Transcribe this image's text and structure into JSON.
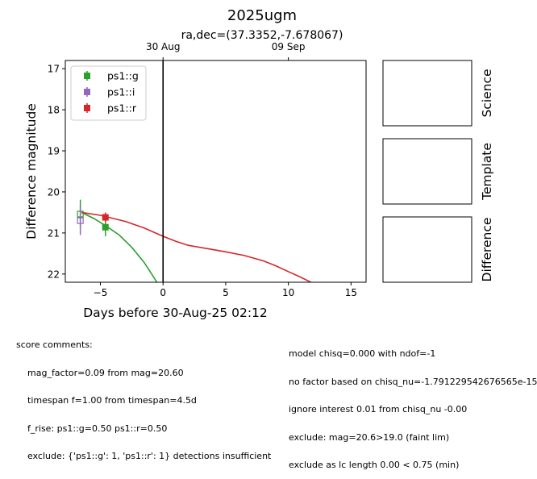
{
  "figure": {
    "title": "2025ugm",
    "subtitle": "ra,dec=(37.3352,-7.678067)"
  },
  "chart_data": {
    "type": "scatter",
    "title": "2025ugm",
    "xlabel": "Days before 30-Aug-25 02:12",
    "ylabel": "Difference magnitude",
    "xlim": [
      -7.8,
      16.2
    ],
    "ylim": [
      22.2,
      16.8
    ],
    "y_inverted": true,
    "grid": false,
    "legend_position": "top-left",
    "x_ticks": [
      -5,
      0,
      5,
      10,
      15
    ],
    "y_ticks": [
      17,
      18,
      19,
      20,
      21,
      22
    ],
    "top_axis_ticks": [
      {
        "label": "30 Aug",
        "x": 0
      },
      {
        "label": "09 Sep",
        "x": 10
      }
    ],
    "vertical_marker_x": 0,
    "series": [
      {
        "name": "ps1::g",
        "color": "#2ca02c",
        "marker": "square-filled",
        "points": [
          {
            "x": -4.6,
            "y": 20.86,
            "yerr": 0.22
          }
        ]
      },
      {
        "name": "ps1::i",
        "color": "#9467bd",
        "marker": "square-open",
        "points": [
          {
            "x": -6.6,
            "y": 20.66,
            "yerr": 0.4
          }
        ]
      },
      {
        "name": "ps1::r",
        "color": "#d62728",
        "marker": "square-filled",
        "points": [
          {
            "x": -4.6,
            "y": 20.62,
            "yerr": 0.12
          }
        ]
      }
    ],
    "open_markers": [
      {
        "x": -6.6,
        "y": 20.54,
        "color": "#2ca02c",
        "yerr": 0.35
      },
      {
        "x": -6.6,
        "y": 20.7,
        "color": "#9467bd",
        "yerr": 0.35
      }
    ],
    "model_curves": [
      {
        "band": "ps1::g",
        "color": "#2ca02c",
        "points": [
          [
            -6.5,
            20.5
          ],
          [
            -5.5,
            20.65
          ],
          [
            -4.6,
            20.82
          ],
          [
            -3.5,
            21.05
          ],
          [
            -2.5,
            21.35
          ],
          [
            -1.5,
            21.72
          ],
          [
            -0.8,
            22.05
          ],
          [
            -0.5,
            22.2
          ]
        ]
      },
      {
        "band": "ps1::r",
        "color": "#d62728",
        "points": [
          [
            -6.5,
            20.5
          ],
          [
            -5,
            20.57
          ],
          [
            -4.6,
            20.6
          ],
          [
            -3,
            20.72
          ],
          [
            -1.5,
            20.88
          ],
          [
            0,
            21.08
          ],
          [
            1,
            21.2
          ],
          [
            2,
            21.3
          ],
          [
            3.5,
            21.38
          ],
          [
            5,
            21.46
          ],
          [
            6.5,
            21.55
          ],
          [
            8,
            21.68
          ],
          [
            9,
            21.8
          ],
          [
            10,
            21.94
          ],
          [
            11,
            22.08
          ],
          [
            11.8,
            22.2
          ]
        ]
      }
    ]
  },
  "stamps": [
    {
      "label": "Science"
    },
    {
      "label": "Template"
    },
    {
      "label": "Difference"
    }
  ],
  "comments": {
    "heading": "score comments:",
    "left": [
      "mag_factor=0.09 from mag=20.60",
      "timespan f=1.00 from timespan=4.5d",
      "f_rise: ps1::g=0.50 ps1::r=0.50",
      "exclude: {'ps1::g': 1, 'ps1::r': 1} detections insufficient"
    ],
    "right": [
      "model chisq=0.000 with ndof=-1",
      "no factor based on chisq_nu=-1.791229542676565e-15",
      "ignore interest 0.01 from chisq_nu -0.00",
      "exclude: mag=20.6>19.0 (faint lim)",
      "exclude as lc length 0.00 < 0.75 (min)"
    ]
  }
}
